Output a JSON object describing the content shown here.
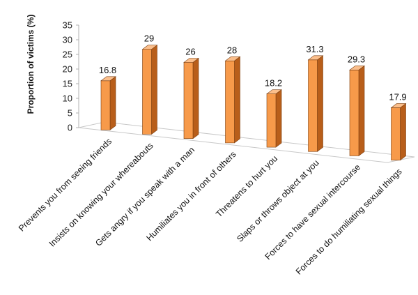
{
  "chart_data": {
    "type": "bar",
    "title": "",
    "xlabel": "",
    "ylabel": "Proportion of victims (%)",
    "ylim": [
      0,
      35
    ],
    "yticks": [
      0,
      5,
      10,
      15,
      20,
      25,
      30,
      35
    ],
    "grid": false,
    "legend": "none",
    "style": "3d-columns",
    "categories": [
      "Prevents you from seeing friends",
      "Insists on knowing your whereabouts",
      "Gets angry if you speak with a man",
      "Humiliates you in front of others",
      "Threatens to hurt you",
      "Slaps or throws object at you",
      "Forces to have sexual intercourse",
      "Forces to do humiliating sexual things"
    ],
    "values": [
      16.8,
      29,
      26,
      28,
      18.2,
      31.3,
      29.3,
      17.9
    ],
    "value_labels": [
      "16.8",
      "29",
      "26",
      "28",
      "18.2",
      "31.3",
      "29.3",
      "17.9"
    ],
    "colors": {
      "bar_front": "#F79A4A",
      "bar_side": "#B85E1A",
      "bar_top": "#FBBF8C",
      "bar_outline": "#7A3E10",
      "floor": "#FFFFFF",
      "floor_edge": "#C8C8C8",
      "axis": "#B0B0B0"
    }
  }
}
